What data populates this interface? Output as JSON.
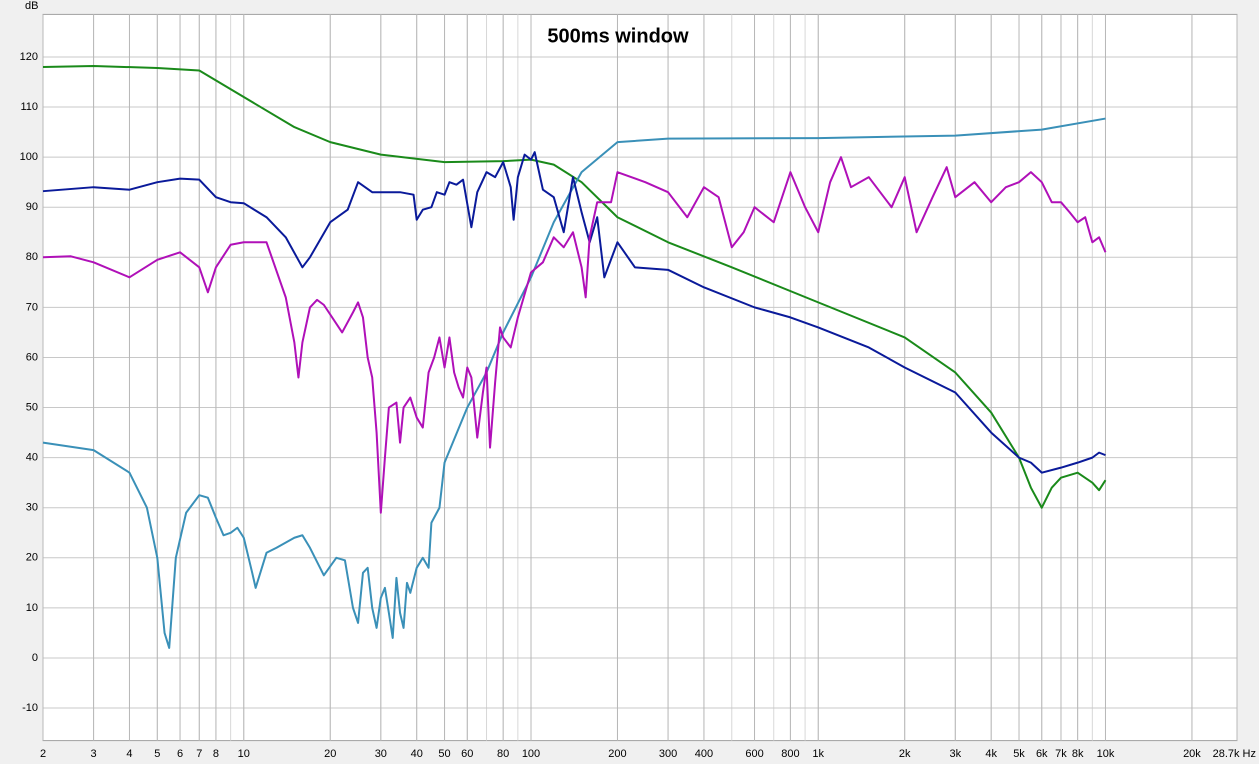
{
  "chart_data": {
    "type": "line",
    "title": "500ms window",
    "y_label": "dB",
    "xscale": "log",
    "grid": true,
    "minor_grid": true,
    "xlim": [
      2,
      28700
    ],
    "ylim": [
      -16.5,
      128.5
    ],
    "yticks": [
      -10,
      0,
      10,
      20,
      30,
      40,
      50,
      60,
      70,
      80,
      90,
      100,
      110,
      120
    ],
    "xticks": [
      2,
      3,
      4,
      5,
      6,
      7,
      8,
      10,
      20,
      30,
      40,
      50,
      60,
      80,
      100,
      200,
      300,
      400,
      600,
      800,
      {
        "value": 1000,
        "label": "1k"
      },
      {
        "value": 2000,
        "label": "2k"
      },
      {
        "value": 3000,
        "label": "3k"
      },
      {
        "value": 4000,
        "label": "4k"
      },
      {
        "value": 5000,
        "label": "5k"
      },
      {
        "value": 6000,
        "label": "6k"
      },
      {
        "value": 7000,
        "label": "7k"
      },
      {
        "value": 8000,
        "label": "8k"
      },
      {
        "value": 10000,
        "label": "10k"
      },
      {
        "value": 20000,
        "label": "20k"
      },
      {
        "value": 28700,
        "label": "28.7k Hz"
      }
    ],
    "series": [
      {
        "color": "#1a8a1a",
        "x": [
          2,
          3,
          5,
          7,
          10,
          15,
          20,
          30,
          50,
          80,
          100,
          120,
          150,
          200,
          300,
          500,
          1000,
          2000,
          3000,
          4000,
          5000,
          5500,
          6000,
          6500,
          7000,
          8000,
          9000,
          9500,
          10000
        ],
        "values": [
          118,
          118.2,
          117.8,
          117.3,
          112,
          106,
          103,
          100.5,
          99,
          99.2,
          99.5,
          98.5,
          95,
          88,
          83,
          78,
          71,
          64,
          57,
          49,
          40,
          34,
          30,
          34,
          36,
          37,
          35,
          33.5,
          35.5
        ]
      },
      {
        "color": "#3a90b8",
        "x": [
          2,
          3,
          4,
          4.6,
          5,
          5.3,
          5.5,
          5.8,
          6.3,
          7,
          7.5,
          8,
          8.5,
          9,
          9.5,
          10,
          10.7,
          11,
          12,
          13,
          15,
          16,
          17,
          19,
          21,
          22.5,
          24,
          25,
          26,
          27,
          28,
          29,
          30,
          31,
          32,
          33,
          34,
          35,
          36,
          37,
          38,
          40,
          42,
          44,
          45,
          48,
          50,
          60,
          70,
          80,
          100,
          120,
          150,
          200,
          300,
          1000,
          3000,
          6000,
          10000
        ],
        "values": [
          43,
          41.5,
          37,
          30,
          20,
          5,
          2,
          20,
          29,
          32.5,
          32,
          28,
          24.5,
          25,
          26,
          24,
          17,
          14,
          21,
          22,
          24,
          24.5,
          22,
          16.5,
          20,
          19.5,
          10,
          7,
          17,
          18,
          10,
          6,
          12,
          14,
          9,
          4,
          16,
          9,
          6,
          15,
          13,
          18,
          20,
          18,
          27,
          30,
          39,
          50,
          57,
          65,
          76,
          87,
          97,
          103,
          103.7,
          103.8,
          104.3,
          105.5,
          107.7
        ]
      },
      {
        "color": "#0a1a9a",
        "x": [
          2,
          3,
          4,
          5,
          6,
          7,
          8,
          9,
          10,
          12,
          14,
          16,
          17,
          20,
          23,
          25,
          28,
          35,
          39,
          40,
          42,
          45,
          47,
          50,
          52,
          55,
          58,
          62,
          65,
          70,
          75,
          80,
          85,
          87,
          90,
          95,
          100,
          103,
          110,
          120,
          130,
          140,
          150,
          160,
          170,
          180,
          200,
          230,
          300,
          400,
          600,
          800,
          1000,
          1500,
          2000,
          3000,
          4000,
          5000,
          5500,
          6000,
          7000,
          8000,
          9000,
          9500,
          10000
        ],
        "values": [
          93.2,
          94,
          93.5,
          95,
          95.7,
          95.5,
          92,
          91,
          90.8,
          88,
          84,
          78,
          80,
          87,
          89.5,
          95,
          93,
          93,
          92.5,
          87.5,
          89.5,
          90,
          93,
          92.5,
          95,
          94.5,
          95.5,
          86,
          93,
          97,
          96,
          99,
          94,
          87.5,
          96,
          100.5,
          99.5,
          101,
          93.5,
          92,
          85,
          96,
          89,
          83,
          88,
          76,
          83,
          78,
          77.5,
          74,
          70,
          68,
          66,
          62,
          58,
          53,
          45,
          40,
          39,
          37,
          38,
          39,
          40,
          41,
          40.5
        ]
      },
      {
        "color": "#b010b8",
        "x": [
          2,
          2.5,
          3,
          4,
          5,
          6,
          7,
          7.5,
          8,
          9,
          10,
          12,
          14,
          15,
          15.5,
          16,
          17,
          18,
          19,
          22,
          24,
          25,
          26,
          27,
          28,
          29,
          30,
          31,
          32,
          34,
          35,
          36,
          38,
          40,
          42,
          44,
          46,
          48,
          50,
          52,
          54,
          56,
          58,
          60,
          62,
          65,
          68,
          70,
          72,
          75,
          78,
          80,
          85,
          90,
          100,
          110,
          120,
          130,
          140,
          150,
          155,
          160,
          170,
          190,
          200,
          250,
          300,
          350,
          400,
          450,
          500,
          550,
          600,
          700,
          800,
          900,
          1000,
          1100,
          1200,
          1300,
          1500,
          1800,
          2000,
          2200,
          2500,
          2800,
          3000,
          3500,
          4000,
          4500,
          5000,
          5500,
          6000,
          6500,
          7000,
          7500,
          8000,
          8500,
          9000,
          9500,
          10000
        ],
        "values": [
          80,
          80.2,
          79,
          76,
          79.5,
          81,
          78,
          73,
          78,
          82.5,
          83,
          83,
          72,
          63,
          56,
          63,
          70,
          71.5,
          70.5,
          65,
          69,
          71,
          68,
          60,
          56,
          45,
          29,
          40,
          50,
          51,
          43,
          50,
          52,
          48,
          46,
          57,
          60,
          64,
          58,
          64,
          57,
          54,
          52,
          58,
          56,
          44,
          53,
          58,
          42,
          55,
          66,
          64,
          62,
          68,
          77,
          79,
          84,
          82,
          85,
          78,
          72,
          84,
          91,
          91,
          97,
          95,
          93,
          88,
          94,
          92,
          82,
          85,
          90,
          87,
          97,
          90,
          85,
          95,
          100,
          94,
          96,
          90,
          96,
          85,
          92,
          98,
          92,
          95,
          91,
          94,
          95,
          97,
          95,
          91,
          91,
          89,
          87,
          88,
          83,
          84,
          81
        ]
      }
    ]
  }
}
